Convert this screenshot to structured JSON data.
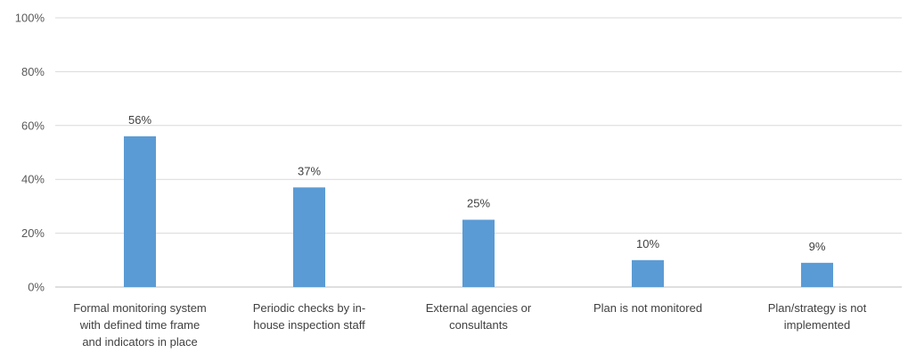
{
  "chart_data": {
    "type": "bar",
    "categories": [
      [
        "Formal monitoring system",
        "with defined time frame",
        "and indicators in place"
      ],
      [
        "Periodic checks by in-",
        "house inspection staff"
      ],
      [
        "External agencies or",
        "consultants"
      ],
      [
        "Plan is not monitored"
      ],
      [
        "Plan/strategy is not",
        "implemented"
      ]
    ],
    "values": [
      56,
      37,
      25,
      10,
      9
    ],
    "data_labels": [
      "56%",
      "37%",
      "25%",
      "10%",
      "9%"
    ],
    "ylim": [
      0,
      100
    ],
    "yticks": [
      0,
      20,
      40,
      60,
      80,
      100
    ],
    "ytick_labels": [
      "0%",
      "20%",
      "40%",
      "60%",
      "80%",
      "100%"
    ],
    "grid": true,
    "bar_color": "#5b9bd5",
    "title": "",
    "xlabel": "",
    "ylabel": ""
  }
}
